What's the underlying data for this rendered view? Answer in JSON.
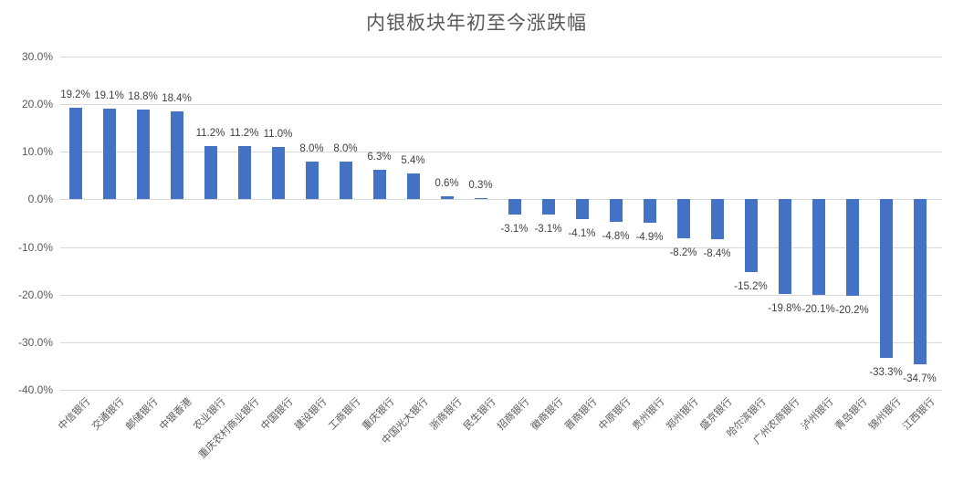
{
  "chart_data": {
    "type": "bar",
    "title": "内银板块年初至今涨跌幅",
    "categories": [
      "中信银行",
      "交通银行",
      "邮储银行",
      "中银香港",
      "农业银行",
      "重庆农村商业银行",
      "中国银行",
      "建设银行",
      "工商银行",
      "重庆银行",
      "中国光大银行",
      "浙商银行",
      "民生银行",
      "招商银行",
      "徽商银行",
      "晋商银行",
      "中原银行",
      "贵州银行",
      "郑州银行",
      "盛京银行",
      "哈尔滨银行",
      "广州农商银行",
      "泸州银行",
      "青岛银行",
      "锦州银行",
      "江西银行"
    ],
    "values": [
      19.2,
      19.1,
      18.8,
      18.4,
      11.2,
      11.2,
      11.0,
      8.0,
      8.0,
      6.3,
      5.4,
      0.6,
      0.3,
      -3.1,
      -3.1,
      -4.1,
      -4.8,
      -4.9,
      -8.2,
      -8.4,
      -15.2,
      -19.8,
      -20.1,
      -20.2,
      -33.3,
      -34.7
    ],
    "data_labels": [
      "19.2%",
      "19.1%",
      "18.8%",
      "18.4%",
      "11.2%",
      "11.2%",
      "11.0%",
      "8.0%",
      "8.0%",
      "6.3%",
      "5.4%",
      "0.6%",
      "0.3%",
      "-3.1%",
      "-3.1%",
      "-4.1%",
      "-4.8%",
      "-4.9%",
      "-8.2%",
      "-8.4%",
      "-15.2%",
      "-19.8%",
      "-20.1%",
      "-20.2%",
      "-33.3%",
      "-34.7%"
    ],
    "y_tick_labels": [
      "30.0%",
      "20.0%",
      "10.0%",
      "0.0%",
      "-10.0%",
      "-20.0%",
      "-30.0%",
      "-40.0%"
    ],
    "y_tick_values": [
      30,
      20,
      10,
      0,
      -10,
      -20,
      -30,
      -40
    ],
    "ylim": [
      -40,
      30
    ],
    "xlabel": "",
    "ylabel": "",
    "grid": true,
    "legend": "none",
    "bar_color": "#4472c4",
    "gridline_color": "#d9d9d9",
    "text_color": "#595959"
  }
}
